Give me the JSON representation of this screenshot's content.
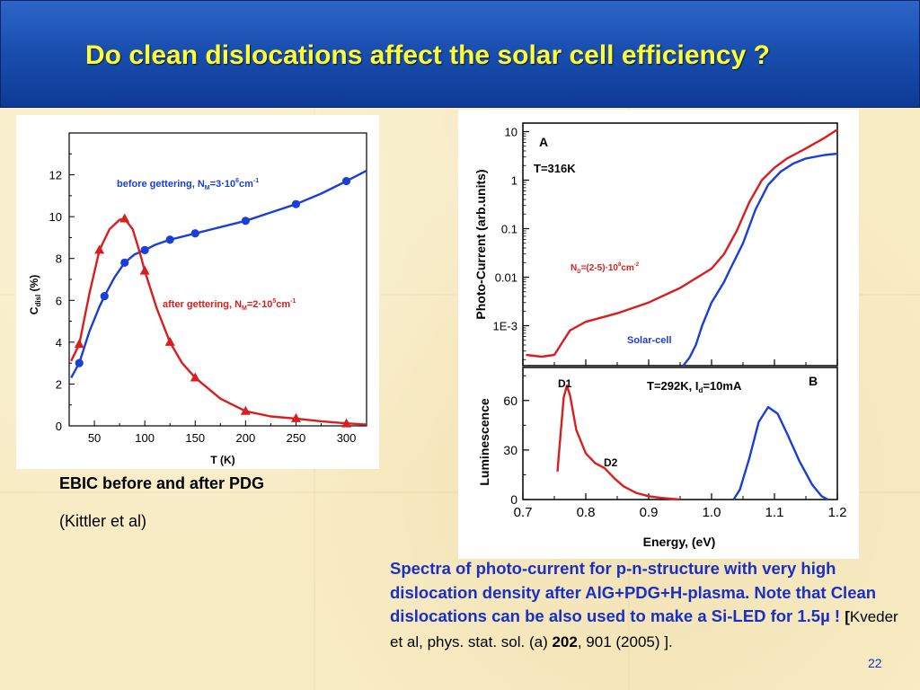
{
  "slide": {
    "title": "Do clean dislocations affect the solar cell efficiency ?",
    "left_caption": "EBIC before and after PDG",
    "left_citation": "(Kittler et al)",
    "right_caption_main": "Spectra of photo-current for p-n-structure with very high dislocation density after AlG+PDG+H-plasma. Note that Clean dislocations can be also used to make a Si-LED for 1.5µ ! ",
    "right_caption_bracket": "[",
    "right_caption_ref": "Kveder et al,  phys. stat. sol. (a) ",
    "right_caption_volume": "202",
    "right_caption_pages": ", 901 (2005) ].",
    "slide_number": "22"
  },
  "colors": {
    "red": "#d81e1e",
    "blue": "#1a3fd8",
    "caption_blue": "#1a2fc4",
    "title_yellow": "#ffff33"
  },
  "chart_data": [
    {
      "type": "line",
      "xlabel": "T (K)",
      "ylabel": "Cdisl (%)",
      "ylabel_main": "C",
      "ylabel_sub": "disl",
      "ylabel_tail": " (%)",
      "xlim": [
        25,
        320
      ],
      "ylim": [
        0,
        14
      ],
      "xticks": [
        50,
        100,
        150,
        200,
        250,
        300
      ],
      "yticks": [
        0,
        2,
        4,
        6,
        8,
        10,
        12
      ],
      "series": [
        {
          "name": "before gettering, NM=3·10^6cm^-1",
          "label_a": "before gettering, N",
          "label_sub": "M",
          "label_b": "=3",
          "label_dot": "·",
          "label_c": "10",
          "label_sup1": "6",
          "label_d": "cm",
          "label_sup2": "-1",
          "color": "#1a3fd8",
          "marker": "circle",
          "points": [
            [
              35,
              3.0
            ],
            [
              60,
              6.2
            ],
            [
              80,
              7.8
            ],
            [
              100,
              8.4
            ],
            [
              125,
              8.9
            ],
            [
              150,
              9.2
            ],
            [
              200,
              9.8
            ],
            [
              250,
              10.6
            ],
            [
              300,
              11.7
            ]
          ],
          "curve": [
            [
              27,
              2.3
            ],
            [
              35,
              3.0
            ],
            [
              45,
              4.5
            ],
            [
              55,
              5.7
            ],
            [
              60,
              6.2
            ],
            [
              70,
              7.1
            ],
            [
              80,
              7.8
            ],
            [
              90,
              8.2
            ],
            [
              100,
              8.4
            ],
            [
              110,
              8.65
            ],
            [
              125,
              8.9
            ],
            [
              150,
              9.2
            ],
            [
              175,
              9.5
            ],
            [
              200,
              9.8
            ],
            [
              225,
              10.2
            ],
            [
              250,
              10.6
            ],
            [
              275,
              11.1
            ],
            [
              300,
              11.7
            ],
            [
              320,
              12.2
            ]
          ]
        },
        {
          "name": "after gettering, NM=2·10^5cm^-1",
          "label_a": "after gettering, N",
          "label_sub": "M",
          "label_b": "=2",
          "label_dot": "·",
          "label_c": "10",
          "label_sup1": "5",
          "label_d": "cm",
          "label_sup2": "-1",
          "color": "#d81e1e",
          "marker": "triangle",
          "points": [
            [
              35,
              3.9
            ],
            [
              55,
              8.4
            ],
            [
              80,
              9.9
            ],
            [
              100,
              7.4
            ],
            [
              125,
              4.0
            ],
            [
              150,
              2.3
            ],
            [
              200,
              0.7
            ],
            [
              250,
              0.35
            ],
            [
              300,
              0.1
            ]
          ],
          "curve": [
            [
              27,
              3.1
            ],
            [
              35,
              3.9
            ],
            [
              45,
              6.3
            ],
            [
              55,
              8.4
            ],
            [
              65,
              9.4
            ],
            [
              75,
              9.85
            ],
            [
              80,
              9.9
            ],
            [
              88,
              9.4
            ],
            [
              95,
              8.3
            ],
            [
              100,
              7.4
            ],
            [
              112,
              5.6
            ],
            [
              125,
              4.0
            ],
            [
              137,
              3.0
            ],
            [
              150,
              2.3
            ],
            [
              175,
              1.3
            ],
            [
              200,
              0.7
            ],
            [
              225,
              0.45
            ],
            [
              250,
              0.35
            ],
            [
              275,
              0.22
            ],
            [
              300,
              0.12
            ],
            [
              320,
              0.06
            ]
          ]
        }
      ]
    },
    {
      "type": "line",
      "panel": "A",
      "ylabel": "Photo-Current (arb.units)",
      "yscale": "log",
      "ylim": [
        0.00015,
        15
      ],
      "yticks": [
        0.001,
        0.01,
        0.1,
        1,
        10
      ],
      "ytick_labels": [
        "1E-3",
        "0.01",
        "0.1",
        "1",
        "10"
      ],
      "xlim": [
        0.7,
        1.2
      ],
      "annotation": "T=316K",
      "nd_a": "N",
      "nd_sub": "D",
      "nd_b": "=(2-5)",
      "nd_dot": "·",
      "nd_c": "10",
      "nd_sup": "8",
      "nd_d": "cm",
      "nd_sup2": "-2",
      "series": [
        {
          "name": "ND=(2-5)·10^8cm^-2",
          "color": "#d81e1e",
          "points": [
            [
              0.705,
              0.00025
            ],
            [
              0.73,
              0.00023
            ],
            [
              0.75,
              0.00025
            ],
            [
              0.76,
              0.0004
            ],
            [
              0.775,
              0.0008
            ],
            [
              0.8,
              0.0012
            ],
            [
              0.85,
              0.0018
            ],
            [
              0.9,
              0.003
            ],
            [
              0.95,
              0.006
            ],
            [
              1.0,
              0.015
            ],
            [
              1.02,
              0.03
            ],
            [
              1.04,
              0.09
            ],
            [
              1.06,
              0.35
            ],
            [
              1.08,
              1.0
            ],
            [
              1.1,
              1.8
            ],
            [
              1.12,
              2.8
            ],
            [
              1.15,
              4.5
            ],
            [
              1.18,
              7.5
            ],
            [
              1.2,
              11.0
            ]
          ]
        },
        {
          "name": "Solar-cell",
          "color": "#1a3fd8",
          "points": [
            [
              0.955,
              0.00015
            ],
            [
              0.965,
              0.00022
            ],
            [
              0.975,
              0.0004
            ],
            [
              0.985,
              0.001
            ],
            [
              1.0,
              0.003
            ],
            [
              1.02,
              0.008
            ],
            [
              1.03,
              0.015
            ],
            [
              1.05,
              0.05
            ],
            [
              1.07,
              0.25
            ],
            [
              1.09,
              0.8
            ],
            [
              1.11,
              1.5
            ],
            [
              1.13,
              2.2
            ],
            [
              1.15,
              2.8
            ],
            [
              1.18,
              3.3
            ],
            [
              1.2,
              3.5
            ]
          ]
        }
      ]
    },
    {
      "type": "line",
      "panel": "B",
      "xlabel": "Energy, (eV)",
      "ylabel": "Luminescence",
      "xlim": [
        0.7,
        1.2
      ],
      "ylim": [
        0,
        80
      ],
      "xticks": [
        0.7,
        0.8,
        0.9,
        1.0,
        1.1,
        1.2
      ],
      "xtick_labels": [
        "0.7",
        "0.8",
        "0.9",
        "1.0",
        "1.1",
        "1.2"
      ],
      "yticks": [
        0,
        30,
        60
      ],
      "annotation_a": "T=292K, I",
      "annotation_sub": "d",
      "annotation_b": "=10mA",
      "peak_labels": [
        "D1",
        "D2"
      ],
      "series": [
        {
          "name": "D1/D2",
          "color": "#d81e1e",
          "points": [
            [
              0.755,
              17
            ],
            [
              0.76,
              40
            ],
            [
              0.765,
              62
            ],
            [
              0.77,
              69
            ],
            [
              0.775,
              63
            ],
            [
              0.785,
              42
            ],
            [
              0.8,
              28
            ],
            [
              0.815,
              22
            ],
            [
              0.83,
              19
            ],
            [
              0.845,
              13
            ],
            [
              0.86,
              8
            ],
            [
              0.88,
              4
            ],
            [
              0.9,
              2
            ],
            [
              0.92,
              1
            ],
            [
              0.95,
              0
            ]
          ]
        },
        {
          "name": "B",
          "color": "#1a3fd8",
          "points": [
            [
              1.035,
              0
            ],
            [
              1.045,
              6
            ],
            [
              1.06,
              25
            ],
            [
              1.075,
              47
            ],
            [
              1.09,
              56
            ],
            [
              1.105,
              52
            ],
            [
              1.12,
              40
            ],
            [
              1.14,
              23
            ],
            [
              1.16,
              9
            ],
            [
              1.175,
              2
            ],
            [
              1.185,
              0
            ]
          ]
        }
      ]
    }
  ]
}
